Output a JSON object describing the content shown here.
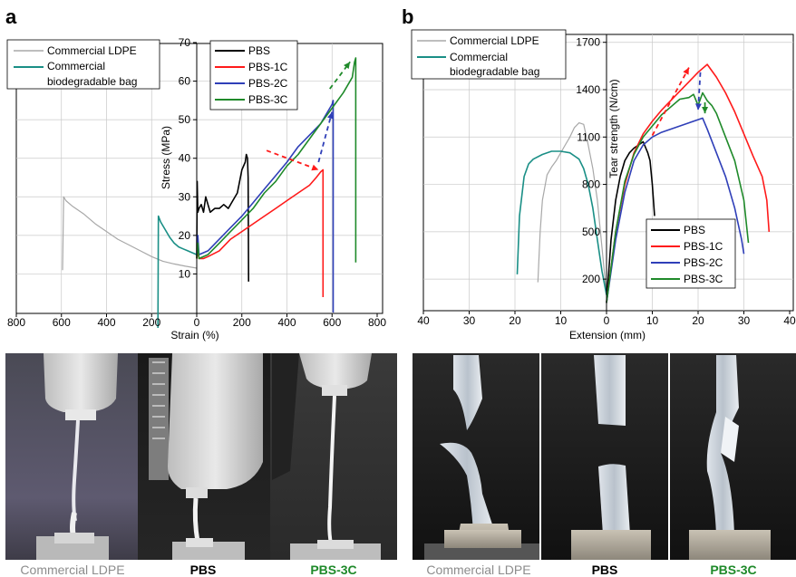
{
  "panels": {
    "a": "a",
    "b": "b"
  },
  "colors": {
    "PBS": "#000000",
    "PBS-1C": "#ff1a1a",
    "PBS-2C": "#2f3fb8",
    "PBS-3C": "#1f8a2a",
    "Commercial LDPE": "#a8a8a8",
    "Commercial biodegradable bag": "#1a8f86",
    "caption_gray": "#8c8c8c",
    "caption_green": "#1f8a2a"
  },
  "chart_data": [
    {
      "type": "line",
      "panel": "a",
      "xlabel": "Strain (%)",
      "ylabel": "Stress (MPa)",
      "xticks": [
        "800",
        "600",
        "400",
        "200",
        "0",
        "200",
        "400",
        "600",
        "800"
      ],
      "yticks": [
        "10",
        "20",
        "30",
        "40",
        "50",
        "60",
        "70"
      ],
      "legend_left": [
        "Commercial LDPE",
        "Commercial biodegradable bag"
      ],
      "legend_left_lines": [
        "Commercial LDPE",
        "Commercial",
        "biodegradable bag"
      ],
      "legend_right": [
        "PBS",
        "PBS-1C",
        "PBS-2C",
        "PBS-3C"
      ],
      "series": [
        {
          "name": "Commercial LDPE",
          "x": [
            -595,
            -590,
            -580,
            -550,
            -500,
            -450,
            -400,
            -350,
            -300,
            -250,
            -200,
            -150,
            -100,
            -50,
            0
          ],
          "y": [
            11,
            30,
            29,
            27.5,
            25.5,
            23,
            21,
            19,
            17.5,
            16,
            14.5,
            13.3,
            12.6,
            12,
            11.5
          ]
        },
        {
          "name": "Commercial biodegradable bag",
          "x": [
            -172,
            -170,
            -160,
            -140,
            -120,
            -100,
            -80,
            -60,
            -40,
            -20,
            0
          ],
          "y": [
            -4,
            25,
            23.5,
            21.5,
            19.5,
            18,
            17,
            16.5,
            16,
            15.5,
            15
          ]
        },
        {
          "name": "PBS",
          "x": [
            0,
            2,
            5,
            10,
            20,
            30,
            40,
            60,
            80,
            100,
            120,
            140,
            160,
            180,
            190,
            200,
            215,
            220,
            225,
            228,
            230
          ],
          "y": [
            14,
            34,
            26,
            27,
            28,
            26,
            30,
            26,
            27,
            27,
            28,
            27,
            29,
            31,
            34,
            37,
            39,
            41,
            40,
            35,
            8
          ]
        },
        {
          "name": "PBS-1C",
          "x": [
            0,
            5,
            10,
            30,
            50,
            100,
            150,
            200,
            250,
            300,
            350,
            400,
            450,
            500,
            530,
            550,
            560,
            560
          ],
          "y": [
            14,
            16,
            14,
            14,
            14.5,
            16,
            19,
            21,
            23,
            25,
            27,
            29,
            31,
            33,
            35,
            36.5,
            37,
            4
          ]
        },
        {
          "name": "PBS-2C",
          "x": [
            0,
            5,
            10,
            50,
            100,
            150,
            200,
            250,
            300,
            350,
            400,
            450,
            500,
            550,
            580,
            600,
            605,
            605
          ],
          "y": [
            15,
            20,
            15,
            16,
            19,
            22,
            25,
            28.5,
            32,
            35.5,
            39,
            43,
            46,
            49,
            52,
            54,
            55,
            0
          ]
        },
        {
          "name": "PBS-3C",
          "x": [
            0,
            5,
            10,
            50,
            100,
            150,
            200,
            250,
            300,
            350,
            400,
            450,
            500,
            550,
            600,
            650,
            690,
            700,
            705,
            705
          ],
          "y": [
            14,
            18,
            14,
            15,
            18,
            21,
            24,
            27,
            31,
            34,
            38,
            41,
            45,
            49,
            53,
            57,
            61,
            65,
            66,
            13
          ]
        }
      ],
      "arrows": [
        {
          "from": [
            310,
            42
          ],
          "to": [
            540,
            37
          ],
          "color": "PBS-1C"
        },
        {
          "from": [
            540,
            39
          ],
          "to": [
            600,
            52
          ],
          "color": "PBS-2C"
        },
        {
          "from": [
            590,
            58
          ],
          "to": [
            680,
            65
          ],
          "color": "PBS-3C"
        }
      ]
    },
    {
      "type": "line",
      "panel": "b",
      "xlabel": "Extension (mm)",
      "ylabel": "Tear strength (N/cm)",
      "xticks": [
        "40",
        "30",
        "20",
        "10",
        "0",
        "10",
        "20",
        "30",
        "40"
      ],
      "yticks": [
        "200",
        "500",
        "800",
        "1100",
        "1400",
        "1700"
      ],
      "legend_left": [
        "Commercial LDPE",
        "Commercial biodegradable bag"
      ],
      "legend_left_lines": [
        "Commercial LDPE",
        "Commercial",
        "biodegradable bag"
      ],
      "legend_right": [
        "PBS",
        "PBS-1C",
        "PBS-2C",
        "PBS-3C"
      ],
      "series": [
        {
          "name": "Commercial LDPE",
          "x": [
            -15,
            -14.5,
            -14,
            -13,
            -12,
            -11,
            -10,
            -9,
            -8,
            -7,
            -6,
            -5,
            -4,
            -3,
            -2,
            -1,
            0
          ],
          "y": [
            180,
            500,
            700,
            860,
            910,
            950,
            1000,
            1050,
            1100,
            1160,
            1190,
            1180,
            1050,
            900,
            700,
            400,
            100
          ]
        },
        {
          "name": "Commercial biodegradable bag",
          "x": [
            -19.5,
            -19,
            -18,
            -17,
            -16,
            -14,
            -12,
            -10,
            -8,
            -6,
            -5,
            -4,
            -3,
            -2,
            -1,
            0
          ],
          "y": [
            230,
            600,
            850,
            930,
            960,
            990,
            1010,
            1010,
            1000,
            960,
            900,
            800,
            650,
            450,
            250,
            100
          ]
        },
        {
          "name": "PBS",
          "x": [
            0,
            1,
            2,
            3,
            4,
            5,
            6,
            7,
            8,
            9,
            9.5,
            10,
            10.5
          ],
          "y": [
            50,
            450,
            700,
            850,
            950,
            1000,
            1030,
            1050,
            1070,
            1000,
            950,
            800,
            600
          ]
        },
        {
          "name": "PBS-1C",
          "x": [
            0,
            2,
            4,
            6,
            8,
            10,
            12,
            14,
            16,
            18,
            20,
            22,
            24,
            26,
            28,
            30,
            32,
            34,
            35,
            35.5
          ],
          "y": [
            50,
            500,
            800,
            1000,
            1120,
            1200,
            1270,
            1330,
            1390,
            1450,
            1510,
            1560,
            1480,
            1380,
            1260,
            1120,
            980,
            850,
            700,
            500
          ]
        },
        {
          "name": "PBS-2C",
          "x": [
            0,
            2,
            4,
            6,
            8,
            10,
            12,
            14,
            16,
            18,
            20,
            21,
            22,
            24,
            26,
            28,
            29.5,
            30
          ],
          "y": [
            50,
            450,
            750,
            950,
            1050,
            1100,
            1130,
            1150,
            1170,
            1190,
            1210,
            1220,
            1150,
            1000,
            850,
            650,
            450,
            360
          ]
        },
        {
          "name": "PBS-3C",
          "x": [
            0,
            2,
            4,
            6,
            8,
            10,
            12,
            14,
            16,
            18,
            19,
            20,
            21,
            22,
            23,
            24,
            26,
            28,
            30,
            31
          ],
          "y": [
            50,
            500,
            820,
            990,
            1100,
            1170,
            1240,
            1290,
            1340,
            1350,
            1370,
            1300,
            1380,
            1330,
            1300,
            1250,
            1100,
            950,
            700,
            430
          ]
        }
      ],
      "arrows": [
        {
          "from": [
            10,
            1110
          ],
          "to": [
            18,
            1540
          ],
          "color": "PBS-1C"
        },
        {
          "from": [
            20.5,
            1510
          ],
          "to": [
            20,
            1270
          ],
          "color": "PBS-2C"
        },
        {
          "from": [
            21.5,
            1320
          ],
          "to": [
            21.5,
            1250
          ],
          "color": "PBS-3C"
        }
      ]
    }
  ],
  "captions": [
    {
      "text": "Commercial LDPE",
      "color": "caption_gray"
    },
    {
      "text": "PBS",
      "color": "PBS"
    },
    {
      "text": "PBS-3C",
      "color": "caption_green"
    },
    {
      "text": "Commercial LDPE",
      "color": "caption_gray"
    },
    {
      "text": "PBS",
      "color": "PBS"
    },
    {
      "text": "PBS-3C",
      "color": "caption_green"
    }
  ]
}
